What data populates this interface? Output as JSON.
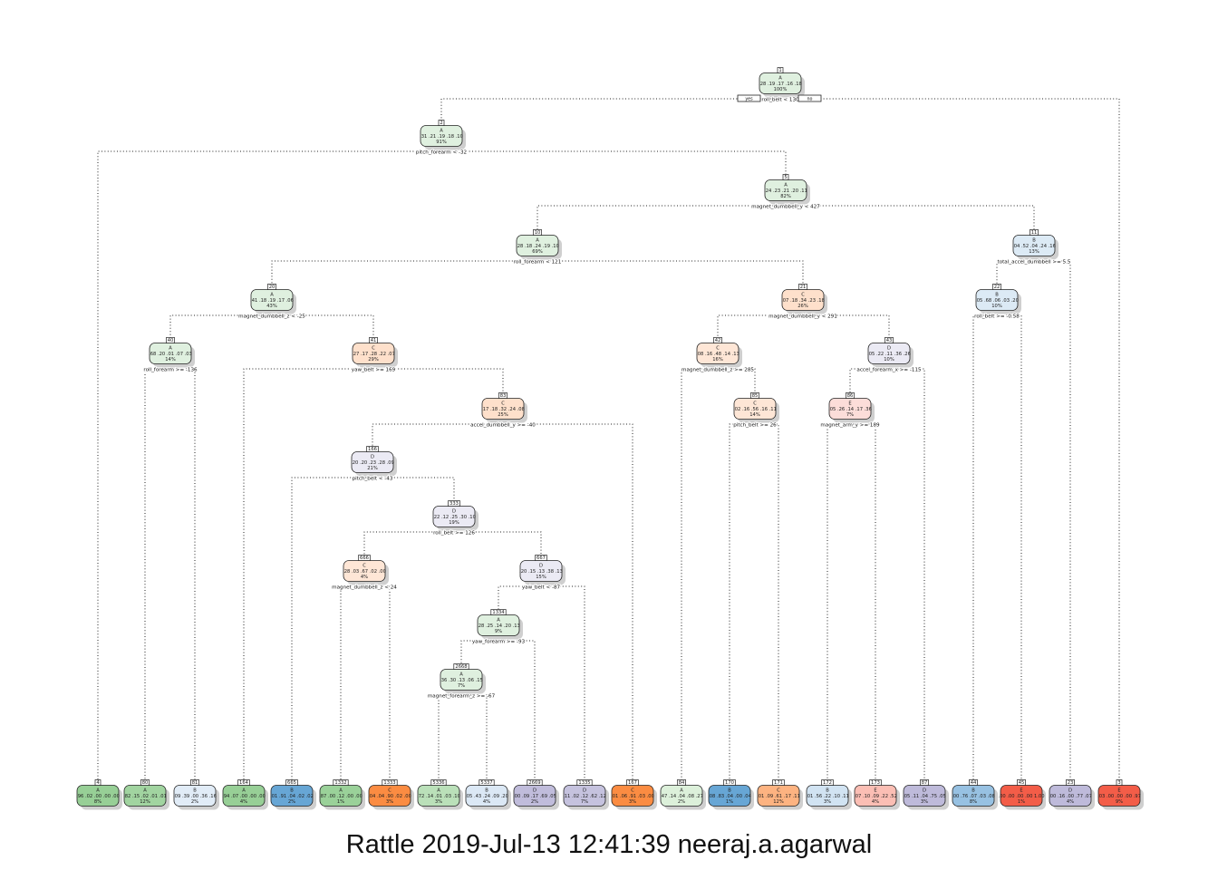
{
  "tree": {
    "yes_label": "yes",
    "no_label": "no",
    "palette": {
      "A": [
        "#f2faf0",
        "#5fb55f"
      ],
      "B": [
        "#eef3fa",
        "#4f98cf"
      ],
      "C": [
        "#fff1e5",
        "#fb8130"
      ],
      "D": [
        "#f4f2f8",
        "#9a95c6"
      ],
      "E": [
        "#fff0eb",
        "#f2553f"
      ]
    },
    "nodes": [
      {
        "id": 1,
        "num": "1",
        "cls": "A",
        "probs": ".28 .19 .17 .16 .18",
        "pct": "100%",
        "split": "roll_belt < 130"
      },
      {
        "id": 2,
        "num": "2",
        "cls": "A",
        "probs": ".31 .21 .19 .18 .10",
        "pct": "91%",
        "split": "pitch_forearm < -32"
      },
      {
        "id": 5,
        "num": "5",
        "cls": "A",
        "probs": ".24 .23 .21 .20 .11",
        "pct": "82%",
        "split": "magnet_dumbbell_y < 427"
      },
      {
        "id": 10,
        "num": "10",
        "cls": "A",
        "probs": ".28 .18 .24 .19 .10",
        "pct": "69%",
        "split": "roll_forearm < 121"
      },
      {
        "id": 11,
        "num": "11",
        "cls": "B",
        "probs": ".04 .52 .04 .24 .16",
        "pct": "13%",
        "split": "total_accel_dumbbell >= 5.5"
      },
      {
        "id": 20,
        "num": "20",
        "cls": "A",
        "probs": ".41 .18 .19 .17 .06",
        "pct": "43%",
        "split": "magnet_dumbbell_z < -25"
      },
      {
        "id": 21,
        "num": "21",
        "cls": "C",
        "probs": ".07 .18 .34 .23 .18",
        "pct": "26%",
        "split": "magnet_dumbbell_y < 291"
      },
      {
        "id": 22,
        "num": "22",
        "cls": "B",
        "probs": ".05 .68 .06 .03 .20",
        "pct": "10%",
        "split": "roll_belt >= -0.58"
      },
      {
        "id": 40,
        "num": "40",
        "cls": "A",
        "probs": ".68 .20 .01 .07 .03",
        "pct": "14%",
        "split": "roll_forearm >= -136"
      },
      {
        "id": 41,
        "num": "41",
        "cls": "C",
        "probs": ".27 .17 .28 .22 .07",
        "pct": "29%",
        "split": "yaw_belt >= 169"
      },
      {
        "id": 42,
        "num": "42",
        "cls": "C",
        "probs": ".08 .16 .48 .14 .13",
        "pct": "16%",
        "split": "magnet_dumbbell_z >= 285"
      },
      {
        "id": 43,
        "num": "43",
        "cls": "D",
        "probs": ".05 .22 .11 .36 .26",
        "pct": "10%",
        "split": "accel_forearm_x >= -115"
      },
      {
        "id": 83,
        "num": "83",
        "cls": "C",
        "probs": ".17 .18 .32 .24 .08",
        "pct": "25%",
        "split": "accel_dumbbell_y >= -40"
      },
      {
        "id": 85,
        "num": "85",
        "cls": "C",
        "probs": ".02 .16 .56 .16 .11",
        "pct": "14%",
        "split": "pitch_belt >= 26"
      },
      {
        "id": 86,
        "num": "86",
        "cls": "E",
        "probs": ".05 .26 .14 .17 .36",
        "pct": "7%",
        "split": "magnet_arm_y >= 189"
      },
      {
        "id": 166,
        "num": "166",
        "cls": "D",
        "probs": ".20 .20 .23 .28 .09",
        "pct": "21%",
        "split": "pitch_belt < -43"
      },
      {
        "id": 333,
        "num": "333",
        "cls": "D",
        "probs": ".22 .12 .25 .30 .10",
        "pct": "19%",
        "split": "roll_belt >= 126"
      },
      {
        "id": 666,
        "num": "666",
        "cls": "C",
        "probs": ".28 .03 .67 .02 .00",
        "pct": "4%",
        "split": "magnet_dumbbell_z < 24"
      },
      {
        "id": 667,
        "num": "667",
        "cls": "D",
        "probs": ".20 .15 .13 .38 .13",
        "pct": "15%",
        "split": "yaw_belt < -87"
      },
      {
        "id": 1334,
        "num": "1334",
        "cls": "A",
        "probs": ".28 .25 .14 .20 .13",
        "pct": "9%",
        "split": "yaw_forearm >= -93"
      },
      {
        "id": 2668,
        "num": "2668",
        "cls": "A",
        "probs": ".36 .30 .13 .06 .15",
        "pct": "7%",
        "split": "magnet_forearm_z >= -67"
      },
      {
        "id": 4,
        "num": "4",
        "cls": "A",
        "probs": ".96 .02 .00 .00 .00",
        "pct": "8%",
        "leaf": true,
        "shade": 0.62
      },
      {
        "id": 80,
        "num": "80",
        "cls": "A",
        "probs": ".82 .15 .02 .01 .01",
        "pct": "12%",
        "leaf": true,
        "shade": 0.55
      },
      {
        "id": 81,
        "num": "81",
        "cls": "B",
        "probs": ".09 .39 .00 .36 .16",
        "pct": "2%",
        "leaf": true,
        "shade": 0.08
      },
      {
        "id": 164,
        "num": "164",
        "cls": "A",
        "probs": ".94 .07 .00 .00 .00",
        "pct": "4%",
        "leaf": true,
        "shade": 0.62
      },
      {
        "id": 665,
        "num": "665",
        "cls": "B",
        "probs": ".01 .91 .04 .02 .02",
        "pct": "2%",
        "leaf": true,
        "shade": 0.85
      },
      {
        "id": 1332,
        "num": "1332",
        "cls": "A",
        "probs": ".87 .00 .12 .00 .00",
        "pct": "1%",
        "leaf": true,
        "shade": 0.6
      },
      {
        "id": 1333,
        "num": "1333",
        "cls": "C",
        "probs": ".04 .04 .90 .02 .00",
        "pct": "3%",
        "leaf": true,
        "shade": 0.9
      },
      {
        "id": 5336,
        "num": "5336",
        "cls": "A",
        "probs": ".72 .14 .01 .03 .10",
        "pct": "3%",
        "leaf": true,
        "shade": 0.38
      },
      {
        "id": 5337,
        "num": "5337",
        "cls": "B",
        "probs": ".05 .43 .24 .09 .20",
        "pct": "4%",
        "leaf": true,
        "shade": 0.12
      },
      {
        "id": 2669,
        "num": "2669",
        "cls": "D",
        "probs": ".00 .09 .17 .69 .05",
        "pct": "2%",
        "leaf": true,
        "shade": 0.58
      },
      {
        "id": 1335,
        "num": "1335",
        "cls": "D",
        "probs": ".11 .02 .12 .62 .12",
        "pct": "7%",
        "leaf": true,
        "shade": 0.52
      },
      {
        "id": 167,
        "num": "167",
        "cls": "C",
        "probs": ".01 .06 .91 .03 .00",
        "pct": "3%",
        "leaf": true,
        "shade": 0.9
      },
      {
        "id": 84,
        "num": "84",
        "cls": "A",
        "probs": ".47 .14 .04 .08 .27",
        "pct": "2%",
        "leaf": true,
        "shade": 0.15
      },
      {
        "id": 170,
        "num": "170",
        "cls": "B",
        "probs": ".08 .83 .04 .00 .04",
        "pct": "1%",
        "leaf": true,
        "shade": 0.85
      },
      {
        "id": 171,
        "num": "171",
        "cls": "C",
        "probs": ".01 .09 .61 .17 .11",
        "pct": "12%",
        "leaf": true,
        "shade": 0.55
      },
      {
        "id": 172,
        "num": "172",
        "cls": "B",
        "probs": ".01 .56 .22 .10 .11",
        "pct": "3%",
        "leaf": true,
        "shade": 0.18
      },
      {
        "id": 173,
        "num": "173",
        "cls": "E",
        "probs": ".07 .10 .09 .22 .52",
        "pct": "4%",
        "leaf": true,
        "shade": 0.32
      },
      {
        "id": 87,
        "num": "87",
        "cls": "D",
        "probs": ".05 .11 .04 .75 .05",
        "pct": "3%",
        "leaf": true,
        "shade": 0.6
      },
      {
        "id": 44,
        "num": "44",
        "cls": "B",
        "probs": ".00 .76 .07 .03 .08",
        "pct": "8%",
        "leaf": true,
        "shade": 0.55
      },
      {
        "id": 45,
        "num": "45",
        "cls": "E",
        "probs": ".00 .00 .00 .00 1.00",
        "pct": "1%",
        "leaf": true,
        "shade": 0.95
      },
      {
        "id": 23,
        "num": "23",
        "cls": "D",
        "probs": ".00 .16 .00 .77 .07",
        "pct": "4%",
        "leaf": true,
        "shade": 0.6
      },
      {
        "id": 3,
        "num": "3",
        "cls": "E",
        "probs": ".03 .00 .00 .00 .97",
        "pct": "9%",
        "leaf": true,
        "shade": 0.95
      }
    ],
    "edges": [
      [
        1,
        2
      ],
      [
        1,
        3
      ],
      [
        2,
        4
      ],
      [
        2,
        5
      ],
      [
        5,
        10
      ],
      [
        5,
        11
      ],
      [
        10,
        20
      ],
      [
        10,
        21
      ],
      [
        11,
        22
      ],
      [
        11,
        23
      ],
      [
        20,
        40
      ],
      [
        20,
        41
      ],
      [
        21,
        42
      ],
      [
        21,
        43
      ],
      [
        22,
        44
      ],
      [
        22,
        45
      ],
      [
        40,
        80
      ],
      [
        40,
        81
      ],
      [
        41,
        164
      ],
      [
        41,
        83
      ],
      [
        42,
        84
      ],
      [
        42,
        85
      ],
      [
        43,
        86
      ],
      [
        43,
        87
      ],
      [
        83,
        166
      ],
      [
        83,
        167
      ],
      [
        85,
        170
      ],
      [
        85,
        171
      ],
      [
        86,
        172
      ],
      [
        86,
        173
      ],
      [
        166,
        665
      ],
      [
        166,
        333
      ],
      [
        333,
        666
      ],
      [
        333,
        667
      ],
      [
        666,
        1332
      ],
      [
        666,
        1333
      ],
      [
        667,
        1334
      ],
      [
        667,
        1335
      ],
      [
        1334,
        2668
      ],
      [
        1334,
        2669
      ],
      [
        2668,
        5336
      ],
      [
        2668,
        5337
      ]
    ]
  },
  "footer": "Rattle 2019-Jul-13 12:41:39 neeraj.a.agarwal"
}
